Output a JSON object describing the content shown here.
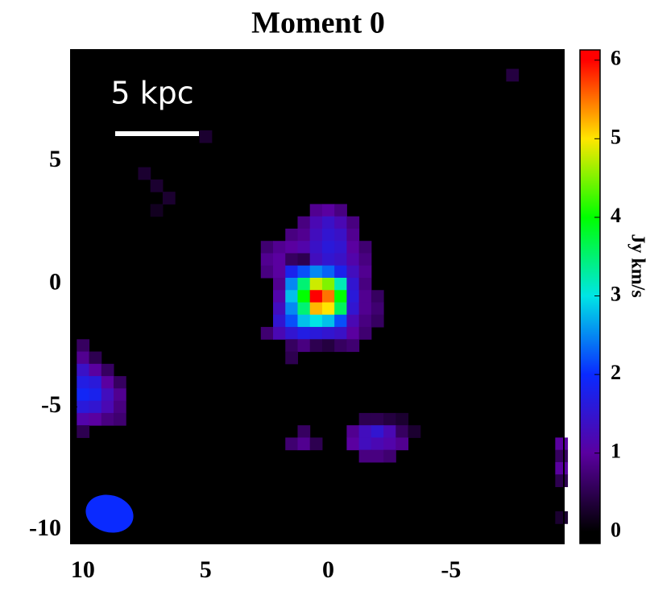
{
  "chart_data": {
    "type": "heatmap",
    "title": "Moment 0",
    "colorbar_label": "Jy km/s",
    "annotations": [
      "5 kpc"
    ],
    "xlim": [
      10.49,
      -9.6
    ],
    "xticks": [
      10,
      5,
      0,
      -5
    ],
    "ylim": [
      -10.56,
      9.52
    ],
    "yticks": [
      5,
      0,
      -5,
      -10
    ],
    "clim": [
      -0.15,
      6.13
    ],
    "cticks": [
      0,
      1,
      2,
      3,
      4,
      5,
      6
    ],
    "colormap": [
      "#000000",
      "#5a00a0",
      "#0a2aff",
      "#00e5e5",
      "#00ff00",
      "#ffe600",
      "#ff0000"
    ],
    "cell_size": 0.5,
    "cells": [
      [
        0.5,
        3.0,
        0.9
      ],
      [
        0,
        3.0,
        1.0
      ],
      [
        -0.5,
        3.0,
        0.8
      ],
      [
        1.0,
        2.5,
        0.8
      ],
      [
        0.5,
        2.5,
        1.2
      ],
      [
        0,
        2.5,
        1.4
      ],
      [
        -0.5,
        2.5,
        1.2
      ],
      [
        -1.0,
        2.5,
        0.8
      ],
      [
        1.5,
        2.0,
        0.8
      ],
      [
        1.0,
        2.0,
        0.9
      ],
      [
        0.5,
        2.0,
        1.3
      ],
      [
        0,
        2.0,
        1.5
      ],
      [
        -0.5,
        2.0,
        1.4
      ],
      [
        -1.0,
        2.0,
        0.9
      ],
      [
        2.5,
        1.5,
        0.7
      ],
      [
        2.0,
        1.5,
        0.9
      ],
      [
        1.5,
        1.5,
        1.0
      ],
      [
        1.0,
        1.5,
        1.1
      ],
      [
        0.5,
        1.5,
        1.4
      ],
      [
        0,
        1.5,
        1.6
      ],
      [
        -0.5,
        1.5,
        1.5
      ],
      [
        -1.0,
        1.5,
        1.0
      ],
      [
        -1.5,
        1.5,
        0.7
      ],
      [
        2.5,
        1.0,
        0.9
      ],
      [
        2.0,
        1.0,
        1.0
      ],
      [
        1.5,
        1.0,
        0.6
      ],
      [
        1.0,
        1.0,
        0.5
      ],
      [
        0.5,
        1.0,
        1.3
      ],
      [
        0,
        1.0,
        1.5
      ],
      [
        -0.5,
        1.0,
        1.4
      ],
      [
        -1.0,
        1.0,
        1.1
      ],
      [
        -1.5,
        1.0,
        0.8
      ],
      [
        2.5,
        0.5,
        0.8
      ],
      [
        2.0,
        0.5,
        1.0
      ],
      [
        1.5,
        0.5,
        1.8
      ],
      [
        1.0,
        0.5,
        2.2
      ],
      [
        0.5,
        0.5,
        2.5
      ],
      [
        0,
        0.5,
        2.3
      ],
      [
        -0.5,
        0.5,
        1.8
      ],
      [
        -1.0,
        0.5,
        1.3
      ],
      [
        -1.5,
        0.5,
        0.9
      ],
      [
        2.0,
        0,
        0.9
      ],
      [
        1.5,
        0,
        2.5
      ],
      [
        1.0,
        0,
        3.5
      ],
      [
        0.5,
        0,
        4.8
      ],
      [
        0,
        0,
        4.5
      ],
      [
        -0.5,
        0,
        3.2
      ],
      [
        -1.0,
        0,
        1.5
      ],
      [
        -1.5,
        0,
        0.8
      ],
      [
        2.0,
        -0.5,
        1.1
      ],
      [
        1.5,
        -0.5,
        2.8
      ],
      [
        1.0,
        -0.5,
        4.0
      ],
      [
        0.5,
        -0.5,
        6.0
      ],
      [
        0,
        -0.5,
        5.5
      ],
      [
        -0.5,
        -0.5,
        4.0
      ],
      [
        -1.0,
        -0.5,
        1.6
      ],
      [
        -1.5,
        -0.5,
        0.9
      ],
      [
        -2.0,
        -0.5,
        0.6
      ],
      [
        2.0,
        -1.0,
        1.3
      ],
      [
        1.5,
        -1.0,
        2.5
      ],
      [
        1.0,
        -1.0,
        3.5
      ],
      [
        0.5,
        -1.0,
        5.2
      ],
      [
        0,
        -1.0,
        5.0
      ],
      [
        -0.5,
        -1.0,
        3.6
      ],
      [
        -1.0,
        -1.0,
        1.5
      ],
      [
        -1.5,
        -1.0,
        0.9
      ],
      [
        -2.0,
        -1.0,
        0.7
      ],
      [
        2.0,
        -1.5,
        1.5
      ],
      [
        1.5,
        -1.5,
        2.2
      ],
      [
        1.0,
        -1.5,
        2.8
      ],
      [
        0.5,
        -1.5,
        3.0
      ],
      [
        0,
        -1.5,
        2.8
      ],
      [
        -0.5,
        -1.5,
        2.2
      ],
      [
        -1.0,
        -1.5,
        1.2
      ],
      [
        -1.5,
        -1.5,
        0.8
      ],
      [
        -2.0,
        -1.5,
        0.6
      ],
      [
        2.5,
        -2.0,
        0.7
      ],
      [
        2.0,
        -2.0,
        1.2
      ],
      [
        1.5,
        -2.0,
        1.5
      ],
      [
        1.0,
        -2.0,
        1.7
      ],
      [
        0.5,
        -2.0,
        1.6
      ],
      [
        0,
        -2.0,
        1.5
      ],
      [
        -0.5,
        -2.0,
        1.4
      ],
      [
        -1.0,
        -2.0,
        1.0
      ],
      [
        -1.5,
        -2.0,
        0.7
      ],
      [
        1.5,
        -2.5,
        0.6
      ],
      [
        1.0,
        -2.5,
        0.8
      ],
      [
        0.5,
        -2.5,
        0.5
      ],
      [
        0,
        -2.5,
        0.4
      ],
      [
        -0.5,
        -2.5,
        0.6
      ],
      [
        -1.0,
        -2.5,
        0.7
      ],
      [
        1.5,
        -3.0,
        0.5
      ],
      [
        10,
        -2.5,
        0.6
      ],
      [
        10,
        -3.0,
        0.9
      ],
      [
        9.5,
        -3.0,
        0.5
      ],
      [
        10,
        -3.5,
        1.4
      ],
      [
        9.5,
        -3.5,
        1.0
      ],
      [
        9.0,
        -3.5,
        0.6
      ],
      [
        10,
        -4.0,
        1.7
      ],
      [
        9.5,
        -4.0,
        1.6
      ],
      [
        9.0,
        -4.0,
        1.0
      ],
      [
        8.5,
        -4.0,
        0.6
      ],
      [
        10,
        -4.5,
        1.9
      ],
      [
        9.5,
        -4.5,
        1.8
      ],
      [
        9.0,
        -4.5,
        1.3
      ],
      [
        8.5,
        -4.5,
        0.9
      ],
      [
        10,
        -5.0,
        1.6
      ],
      [
        9.5,
        -5.0,
        1.5
      ],
      [
        9.0,
        -5.0,
        1.2
      ],
      [
        8.5,
        -5.0,
        0.8
      ],
      [
        10,
        -5.5,
        1.1
      ],
      [
        9.5,
        -5.5,
        1.0
      ],
      [
        9.0,
        -5.5,
        0.8
      ],
      [
        8.5,
        -5.5,
        0.7
      ],
      [
        10,
        -6.0,
        0.5
      ],
      [
        1.0,
        -6.0,
        0.6
      ],
      [
        1.5,
        -6.5,
        0.7
      ],
      [
        1.0,
        -6.5,
        0.9
      ],
      [
        0.5,
        -6.5,
        0.5
      ],
      [
        -1.5,
        -5.5,
        0.5
      ],
      [
        -2.0,
        -5.5,
        0.5
      ],
      [
        -2.5,
        -5.5,
        0.4
      ],
      [
        -3.0,
        -5.5,
        0.3
      ],
      [
        -1.0,
        -6.0,
        0.9
      ],
      [
        -1.5,
        -6.0,
        1.3
      ],
      [
        -2.0,
        -6.0,
        1.5
      ],
      [
        -2.5,
        -6.0,
        1.2
      ],
      [
        -3.0,
        -6.0,
        0.6
      ],
      [
        -3.5,
        -6.0,
        0.3
      ],
      [
        -1.0,
        -6.5,
        1.0
      ],
      [
        -1.5,
        -6.5,
        1.3
      ],
      [
        -2.0,
        -6.5,
        1.2
      ],
      [
        -2.5,
        -6.5,
        1.1
      ],
      [
        -3.0,
        -6.5,
        0.9
      ],
      [
        -1.5,
        -7.0,
        0.8
      ],
      [
        -2.0,
        -7.0,
        0.8
      ],
      [
        -2.5,
        -7.0,
        0.7
      ],
      [
        -9.5,
        -6.5,
        1.0
      ],
      [
        -9.5,
        -7.0,
        0.6
      ],
      [
        -9.5,
        -7.5,
        1.0
      ],
      [
        -9.5,
        -8.0,
        0.5
      ],
      [
        -9.5,
        -9.5,
        0.3
      ],
      [
        -7.5,
        8.5,
        0.4
      ],
      [
        5.0,
        6.0,
        0.3
      ],
      [
        7.5,
        4.5,
        0.3
      ],
      [
        7.0,
        4.0,
        0.3
      ],
      [
        7.0,
        3.0,
        0.2
      ],
      [
        6.5,
        3.5,
        0.3
      ]
    ]
  }
}
